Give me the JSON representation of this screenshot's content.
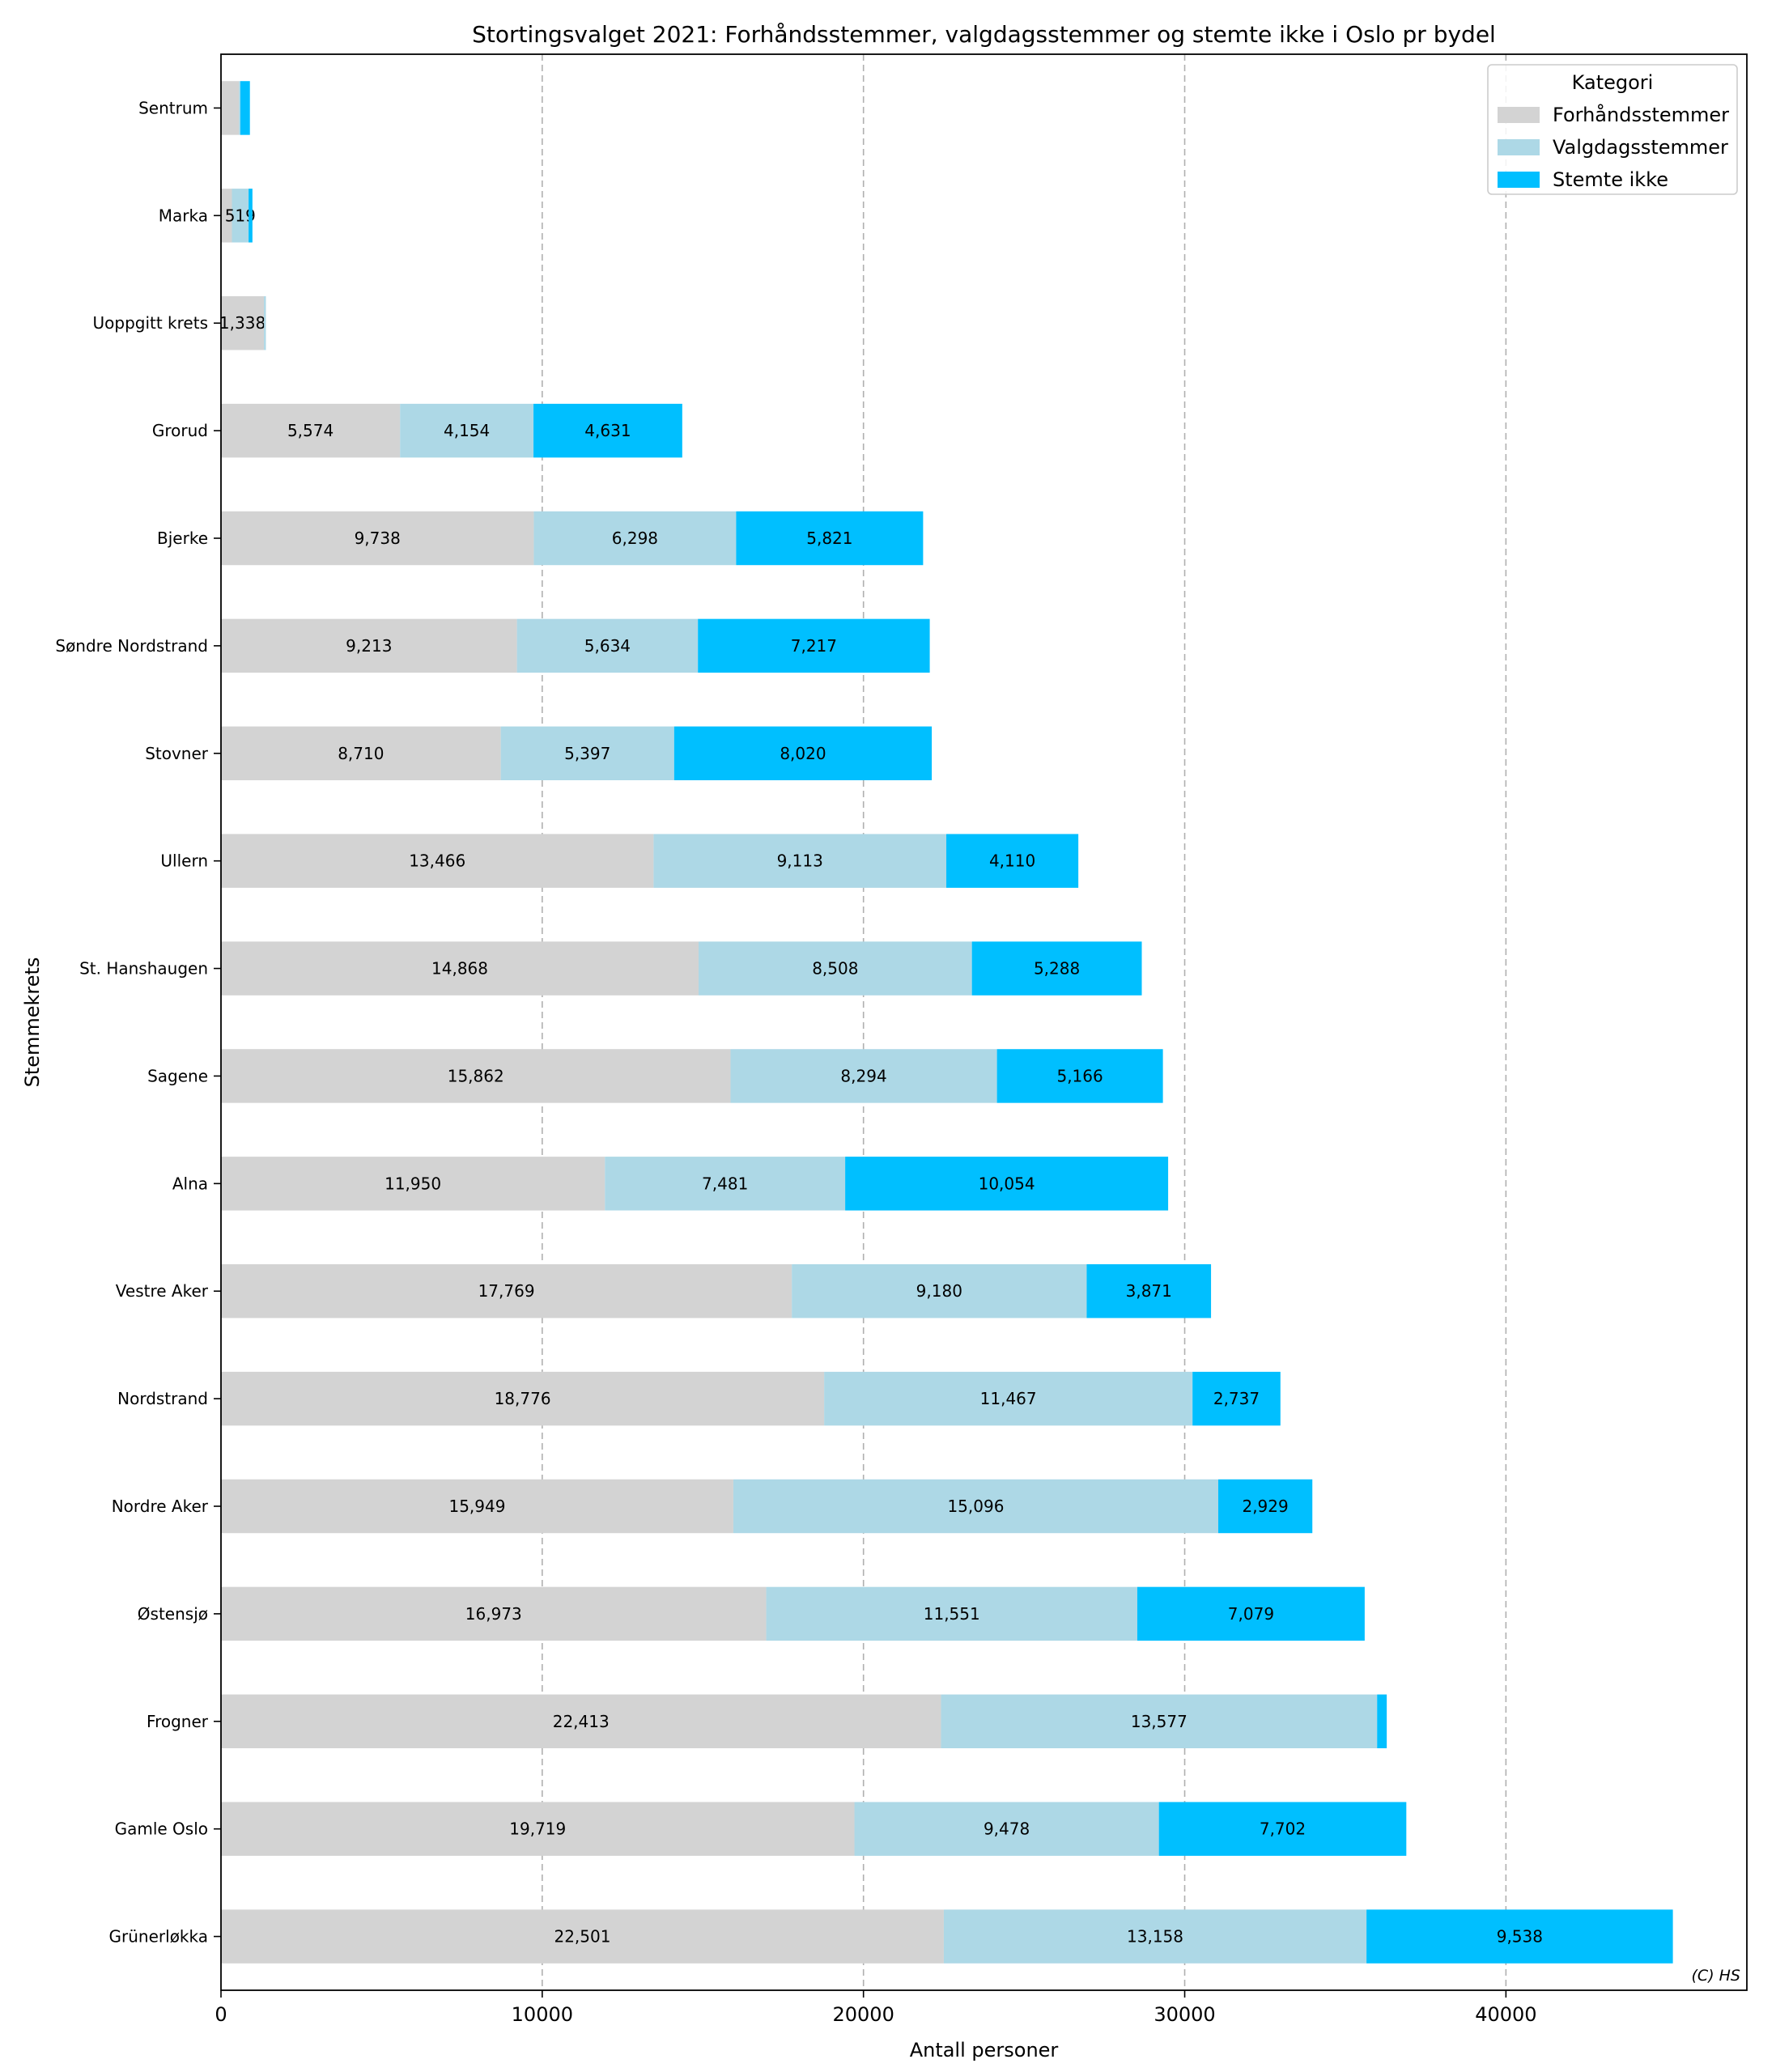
{
  "chart_data": {
    "type": "bar",
    "orientation": "horizontal",
    "stacked": true,
    "title": "Stortingsvalget 2021: Forhåndsstemmer, valgdagsstemmer og stemte ikke i Oslo pr bydel",
    "xlabel": "Antall personer",
    "ylabel": "Stemmekrets",
    "xlim": [
      0,
      47500
    ],
    "xticks": [
      0,
      10000,
      20000,
      30000,
      40000
    ],
    "xtick_labels": [
      "0",
      "10000",
      "20000",
      "30000",
      "40000"
    ],
    "grid": "x, dashed",
    "legend_title": "Kategori",
    "legend_position": "top-right",
    "credit": "(C) HS",
    "categories": [
      "Sentrum",
      "Marka",
      "Uoppgitt krets",
      "Grorud",
      "Bjerke",
      "Søndre Nordstrand",
      "Stovner",
      "Ullern",
      "St. Hanshaugen",
      "Sagene",
      "Alna",
      "Vestre Aker",
      "Nordstrand",
      "Nordre Aker",
      "Østensjø",
      "Frogner",
      "Gamle Oslo",
      "Grünerløkka"
    ],
    "series": [
      {
        "name": "Forhåndsstemmer",
        "color": "#d3d3d3",
        "values": [
          560,
          340,
          1338,
          5574,
          9738,
          9213,
          8710,
          13466,
          14868,
          15862,
          11950,
          17769,
          18776,
          15949,
          16973,
          22413,
          19719,
          22501
        ],
        "labels": [
          "",
          "",
          "1,338",
          "5,574",
          "9,738",
          "9,213",
          "8,710",
          "13,466",
          "14,868",
          "15,862",
          "11,950",
          "17,769",
          "18,776",
          "15,949",
          "16,973",
          "22,413",
          "19,719",
          "22,501"
        ]
      },
      {
        "name": "Valgdagsstemmer",
        "color": "#add8e6",
        "values": [
          40,
          519,
          60,
          4154,
          6298,
          5634,
          5397,
          9113,
          8508,
          8294,
          7481,
          9180,
          11467,
          15096,
          11551,
          13577,
          9478,
          13158
        ],
        "labels": [
          "",
          "519",
          "",
          "4,154",
          "6,298",
          "5,634",
          "5,397",
          "9,113",
          "8,508",
          "8,294",
          "7,481",
          "9,180",
          "11,467",
          "15,096",
          "11,551",
          "13,577",
          "9,478",
          "13,158"
        ]
      },
      {
        "name": "Stemte ikke",
        "color": "#00bfff",
        "values": [
          300,
          120,
          0,
          4631,
          5821,
          7217,
          8020,
          4110,
          5288,
          5166,
          10054,
          3871,
          2737,
          2929,
          7079,
          300,
          7702,
          9538
        ],
        "labels": [
          "",
          "",
          "",
          "4,631",
          "5,821",
          "7,217",
          "8,020",
          "4,110",
          "5,288",
          "5,166",
          "10,054",
          "3,871",
          "2,737",
          "2,929",
          "7,079",
          "",
          "7,702",
          "9,538"
        ]
      }
    ]
  }
}
